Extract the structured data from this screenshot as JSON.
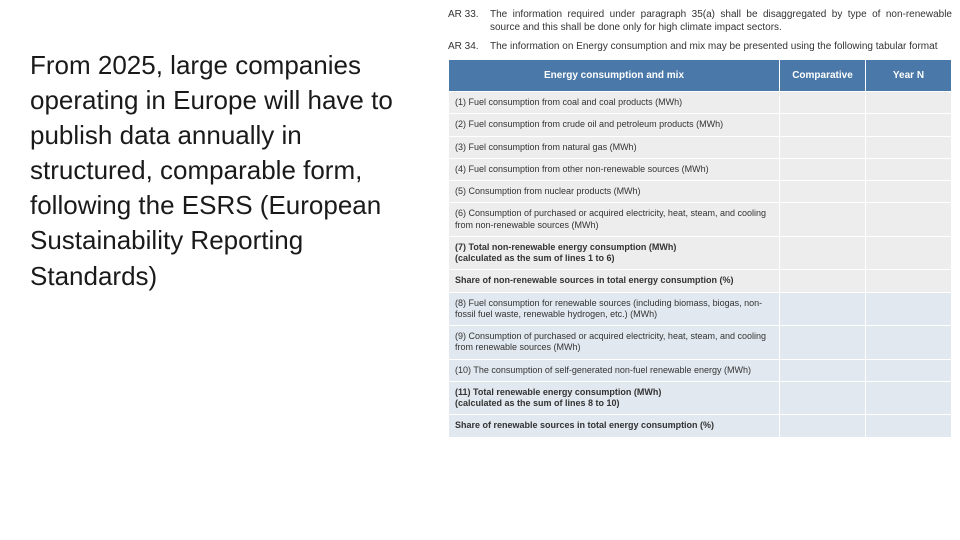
{
  "colors": {
    "header_bg": "#4a78a8",
    "header_text": "#ffffff",
    "row_gray": "#ededed",
    "row_blue": "#e1e8ef",
    "text": "#333333"
  },
  "left": {
    "text": "From 2025, large companies operating in Europe will have to publish data annually in structured, comparable form, following the ESRS (European Sustainability Reporting Standards)"
  },
  "ar33": {
    "label": "AR 33.",
    "text": "The information required under paragraph 35(a) shall be disaggregated by type of non-renewable source and this shall be done only for high climate impact sectors."
  },
  "ar34": {
    "label": "AR 34.",
    "text": "The information on Energy consumption and mix may be presented using the following tabular format"
  },
  "table": {
    "headers": {
      "desc": "Energy consumption and mix",
      "comp": "Comparative",
      "yearn": "Year N"
    },
    "rows": [
      {
        "desc": "(1) Fuel consumption from coal and coal products (MWh)",
        "comp": "",
        "yearn": "",
        "bg": "gray",
        "bold": false
      },
      {
        "desc": "(2) Fuel consumption from crude oil and petroleum products (MWh)",
        "comp": "",
        "yearn": "",
        "bg": "gray",
        "bold": false
      },
      {
        "desc": "(3) Fuel consumption from natural gas (MWh)",
        "comp": "",
        "yearn": "",
        "bg": "gray",
        "bold": false
      },
      {
        "desc": "(4) Fuel consumption from other non-renewable sources (MWh)",
        "comp": "",
        "yearn": "",
        "bg": "gray",
        "bold": false
      },
      {
        "desc": "(5) Consumption from nuclear products (MWh)",
        "comp": "",
        "yearn": "",
        "bg": "gray",
        "bold": false
      },
      {
        "desc": "(6) Consumption of purchased or acquired electricity, heat, steam, and cooling from non-renewable sources (MWh)",
        "comp": "",
        "yearn": "",
        "bg": "gray",
        "bold": false
      },
      {
        "desc": "(7) Total non-renewable energy consumption (MWh)\n(calculated as the sum of lines 1 to 6)",
        "comp": "",
        "yearn": "",
        "bg": "gray",
        "bold": true
      },
      {
        "desc": "Share of non-renewable sources in total energy consumption (%)",
        "comp": "",
        "yearn": "",
        "bg": "gray",
        "bold": true
      },
      {
        "desc": "(8) Fuel consumption for renewable sources (including biomass, biogas, non-fossil fuel waste, renewable hydrogen, etc.) (MWh)",
        "comp": "",
        "yearn": "",
        "bg": "blue",
        "bold": false
      },
      {
        "desc": "(9) Consumption of purchased or acquired electricity, heat, steam, and cooling from renewable sources (MWh)",
        "comp": "",
        "yearn": "",
        "bg": "blue",
        "bold": false
      },
      {
        "desc": "(10) The consumption of self-generated non-fuel renewable energy (MWh)",
        "comp": "",
        "yearn": "",
        "bg": "blue",
        "bold": false
      },
      {
        "desc": "(11) Total renewable energy consumption (MWh)\n(calculated as the sum of lines 8 to 10)",
        "comp": "",
        "yearn": "",
        "bg": "blue",
        "bold": true
      },
      {
        "desc": "Share of renewable sources in total energy consumption (%)",
        "comp": "",
        "yearn": "",
        "bg": "blue",
        "bold": true
      }
    ]
  }
}
